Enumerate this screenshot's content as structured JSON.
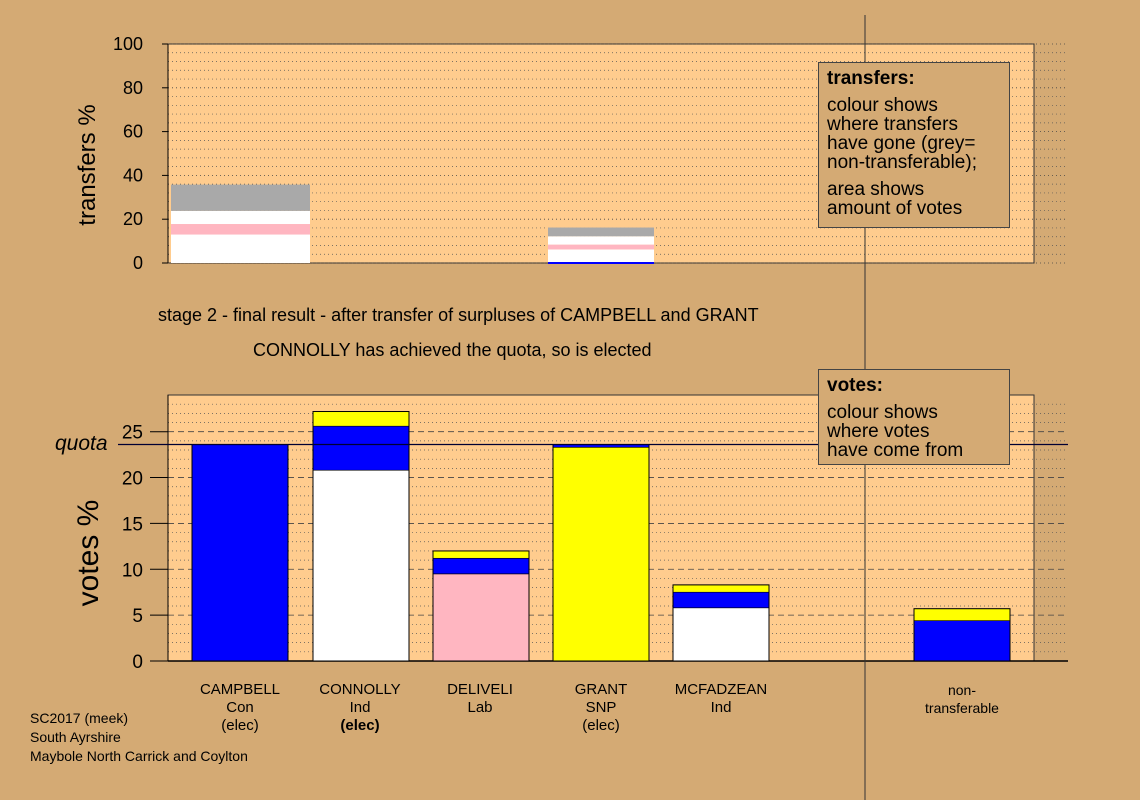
{
  "chart_data": [
    {
      "type": "bar",
      "stacked": true,
      "ylabel": "transfers %",
      "ylim": [
        0,
        100
      ],
      "yticks": [
        0,
        20,
        40,
        60,
        80,
        100
      ],
      "grid": "dotted",
      "categories": [
        "CAMPBELL",
        "GRANT"
      ],
      "series": [
        {
          "color": "#FFFFFF",
          "values": [
            13.0,
            6.2
          ]
        },
        {
          "color": "#FFB6C1",
          "values": [
            4.8,
            2.2
          ]
        },
        {
          "color": "#FFFFFF",
          "values": [
            6.0,
            3.8
          ]
        },
        {
          "color": "#A9A9A9",
          "values": [
            12.0,
            4.0
          ]
        }
      ]
    },
    {
      "type": "bar",
      "stacked": true,
      "ylabel": "votes %",
      "ylim": [
        0,
        29
      ],
      "yticks": [
        0,
        5,
        10,
        15,
        20,
        25
      ],
      "quota": 23.6,
      "quota_label": "quota",
      "grid": "dotted",
      "categories": [
        "CAMPBELL",
        "CONNOLLY",
        "DELIVELI",
        "GRANT",
        "MCFADZEAN",
        "non-transferable"
      ],
      "stacks": [
        [
          {
            "color": "#0000FF",
            "value": 23.6
          }
        ],
        [
          {
            "color": "#FFFFFF",
            "value": 20.8
          },
          {
            "color": "#0000FF",
            "value": 4.8
          },
          {
            "color": "#FFFF00",
            "value": 1.6
          }
        ],
        [
          {
            "color": "#FFB6C1",
            "value": 9.5
          },
          {
            "color": "#0000FF",
            "value": 1.7
          },
          {
            "color": "#FFFF00",
            "value": 0.8
          }
        ],
        [
          {
            "color": "#FFFF00",
            "value": 23.3
          },
          {
            "color": "#0000FF",
            "value": 0.3
          }
        ],
        [
          {
            "color": "#FFFFFF",
            "value": 5.8
          },
          {
            "color": "#0000FF",
            "value": 1.7
          },
          {
            "color": "#FFFF00",
            "value": 0.8
          }
        ],
        [
          {
            "color": "#0000FF",
            "value": 4.4
          },
          {
            "color": "#FFFF00",
            "value": 1.3
          }
        ]
      ]
    }
  ],
  "stage_title": "stage 2 - final result - after transfer of surpluses of CAMPBELL and GRANT",
  "stage_subtitle": "CONNOLLY has achieved the quota, so is elected",
  "legend_transfers": {
    "title": "transfers:",
    "lines": [
      "colour shows",
      "where transfers",
      "have gone (grey=",
      "non-transferable);"
    ],
    "lines2": [
      "area shows",
      "amount of votes"
    ]
  },
  "legend_votes": {
    "title": "votes:",
    "lines": [
      "colour shows",
      "where votes",
      "have come from"
    ]
  },
  "candidates": [
    {
      "name": "CAMPBELL",
      "party": "Con",
      "status": "(elec)"
    },
    {
      "name": "CONNOLLY",
      "party": "Ind",
      "status": "(elec)"
    },
    {
      "name": "DELIVELI",
      "party": "Lab",
      "status": ""
    },
    {
      "name": "GRANT",
      "party": "SNP",
      "status": "(elec)"
    },
    {
      "name": "MCFADZEAN",
      "party": "Ind",
      "status": ""
    },
    {
      "name": "non-",
      "party": "transferable",
      "status": ""
    }
  ],
  "footer": [
    "SC2017 (meek)",
    "South Ayrshire",
    "Maybole North Carrick and Coylton"
  ],
  "colors": {
    "background": "#D4AA74",
    "plot": "#FFCC8E"
  }
}
